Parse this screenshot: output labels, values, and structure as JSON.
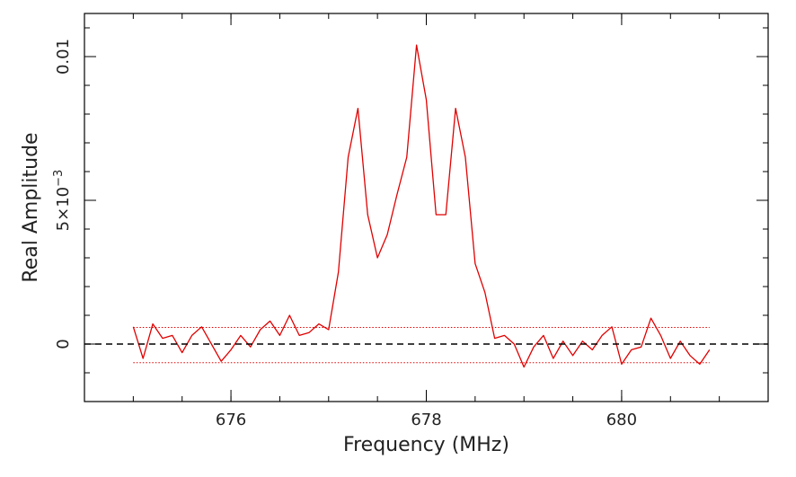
{
  "chart_data": {
    "type": "line",
    "title": "",
    "xlabel": "Frequency (MHz)",
    "ylabel": "Real Amplitude",
    "xlim": [
      674.5,
      681.5
    ],
    "ylim": [
      -0.002,
      0.0115
    ],
    "x_ticks": [
      {
        "value": 676,
        "label": "676"
      },
      {
        "value": 678,
        "label": "678"
      },
      {
        "value": 680,
        "label": "680"
      }
    ],
    "y_ticks": [
      {
        "value": 0,
        "label": "0"
      },
      {
        "value": 0.005,
        "label": "5×10",
        "exponent": "−3"
      },
      {
        "value": 0.01,
        "label": "0.01"
      }
    ],
    "x_minor_step": 0.5,
    "y_minor_step": 0.001,
    "grid": false,
    "series": [
      {
        "name": "",
        "color": "#e00000",
        "style": "solid",
        "x": [
          675.0,
          675.1,
          675.2,
          675.3,
          675.4,
          675.5,
          675.6,
          675.7,
          675.8,
          675.9,
          676.0,
          676.1,
          676.2,
          676.3,
          676.4,
          676.5,
          676.6,
          676.7,
          676.8,
          676.9,
          677.0,
          677.1,
          677.2,
          677.3,
          677.4,
          677.5,
          677.6,
          677.7,
          677.8,
          677.9,
          678.0,
          678.1,
          678.2,
          678.3,
          678.4,
          678.5,
          678.6,
          678.7,
          678.8,
          678.9,
          679.0,
          679.1,
          679.2,
          679.3,
          679.4,
          679.5,
          679.6,
          679.7,
          679.8,
          679.9,
          680.0,
          680.1,
          680.2,
          680.3,
          680.4,
          680.5,
          680.6,
          680.7,
          680.8,
          680.9
        ],
        "y": [
          0.0006,
          -0.0005,
          0.0007,
          0.0002,
          0.0003,
          -0.0003,
          0.0003,
          0.0006,
          0.0,
          -0.0006,
          -0.0002,
          0.0003,
          -0.0001,
          0.0005,
          0.0008,
          0.0003,
          0.001,
          0.0003,
          0.0004,
          0.0007,
          0.0005,
          0.0025,
          0.0065,
          0.0082,
          0.0045,
          0.003,
          0.0038,
          0.0052,
          0.0065,
          0.0104,
          0.0085,
          0.0045,
          0.0045,
          0.0082,
          0.0065,
          0.0028,
          0.0018,
          0.0002,
          0.0003,
          0.0,
          -0.0008,
          -0.0001,
          0.0003,
          -0.0005,
          0.0001,
          -0.0004,
          0.0001,
          -0.0002,
          0.0003,
          0.0006,
          -0.0007,
          -0.0002,
          -0.0001,
          0.0009,
          0.0003,
          -0.0005,
          0.0001,
          -0.0004,
          -0.0007,
          -0.0002
        ]
      },
      {
        "name": "",
        "color": "#e00000",
        "style": "dotted",
        "x": [
          675.0,
          680.9
        ],
        "y": [
          0.00058,
          0.00058
        ]
      },
      {
        "name": "",
        "color": "#e00000",
        "style": "dotted",
        "x": [
          675.0,
          680.9
        ],
        "y": [
          -0.00065,
          -0.00065
        ]
      },
      {
        "name": "",
        "color": "#000000",
        "style": "dashed",
        "x": [
          674.5,
          681.5
        ],
        "y": [
          0,
          0
        ]
      }
    ]
  }
}
